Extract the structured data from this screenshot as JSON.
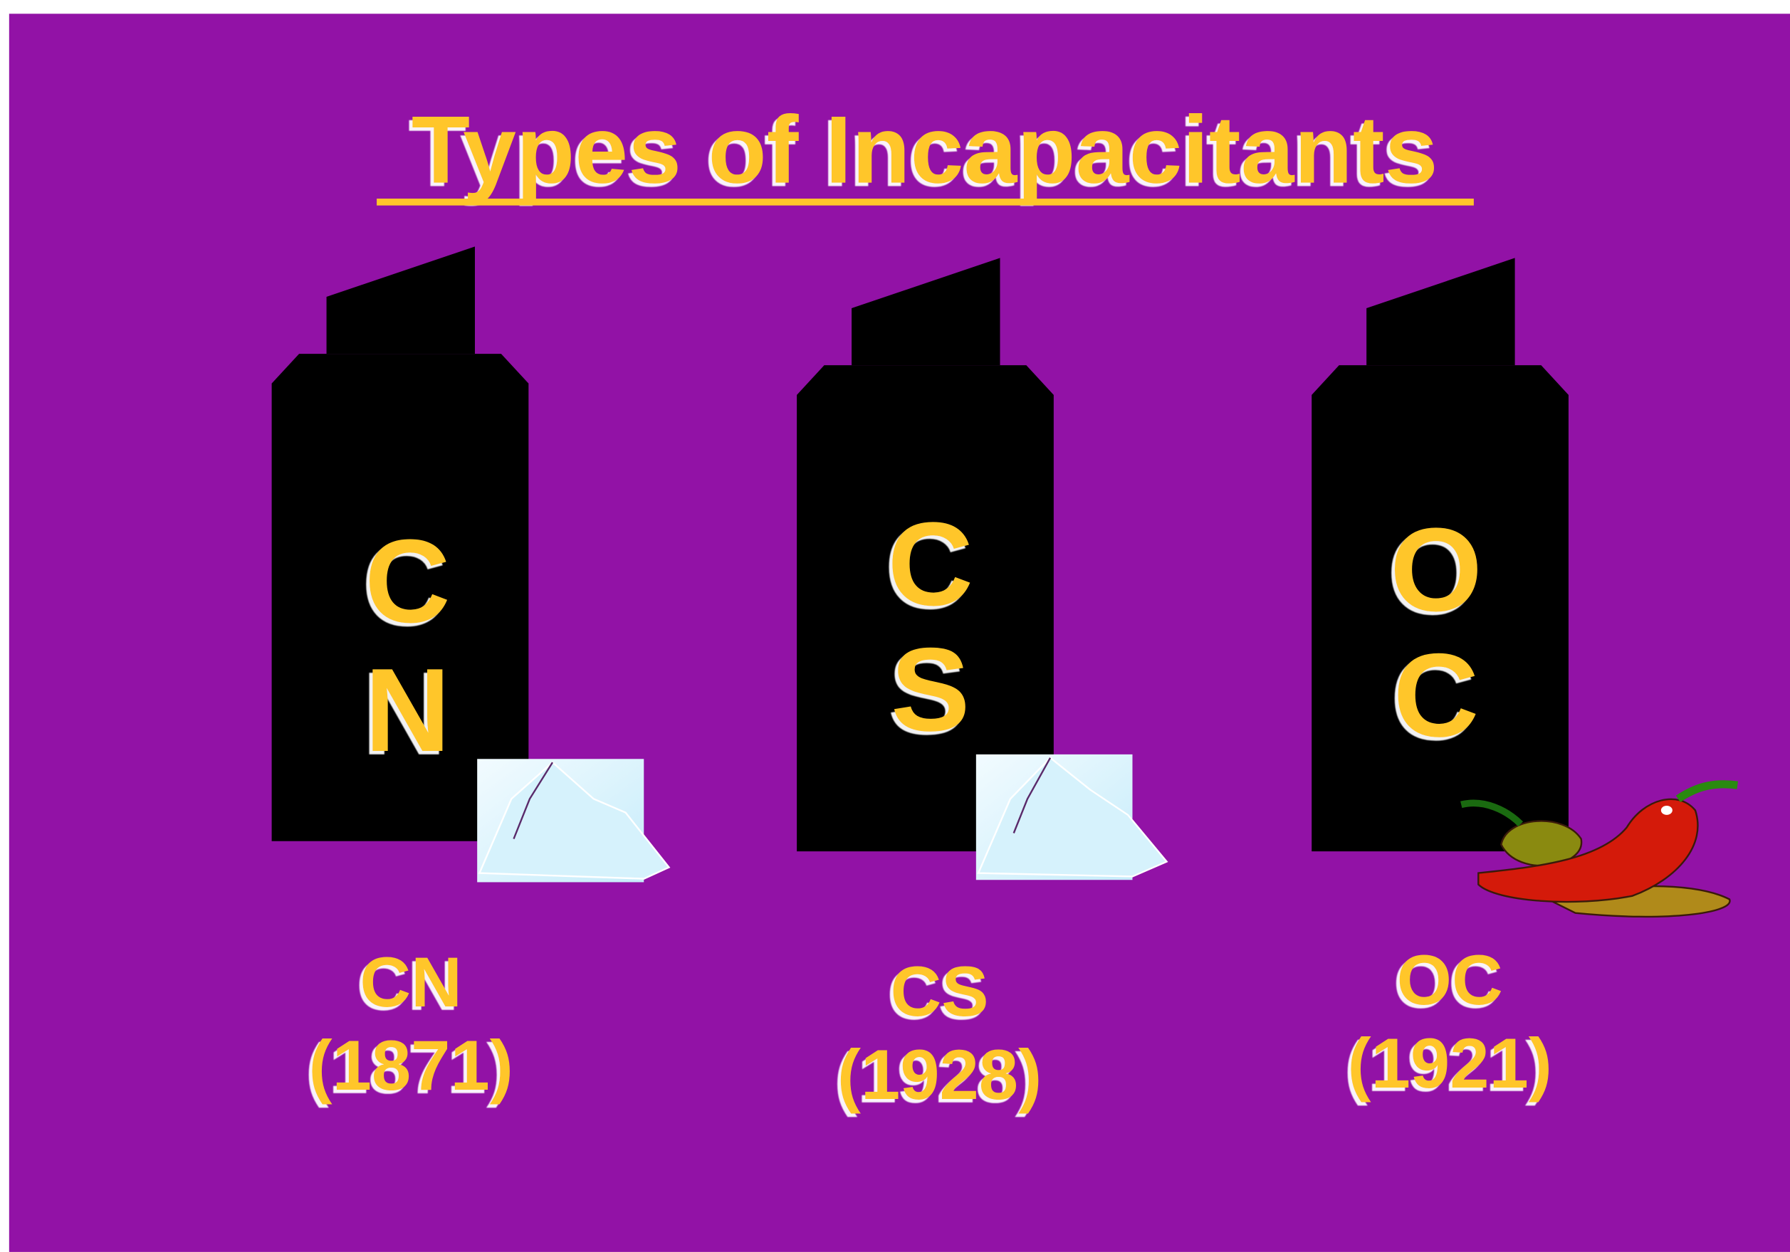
{
  "title": "Types of Incapacitants",
  "items": [
    {
      "letters": [
        "C",
        "N"
      ],
      "name": "CN",
      "year": "(1871)"
    },
    {
      "letters": [
        "C",
        "S"
      ],
      "name": "CS",
      "year": "(1928)"
    },
    {
      "letters": [
        "O",
        "C"
      ],
      "name": "OC",
      "year": "(1921)"
    }
  ]
}
